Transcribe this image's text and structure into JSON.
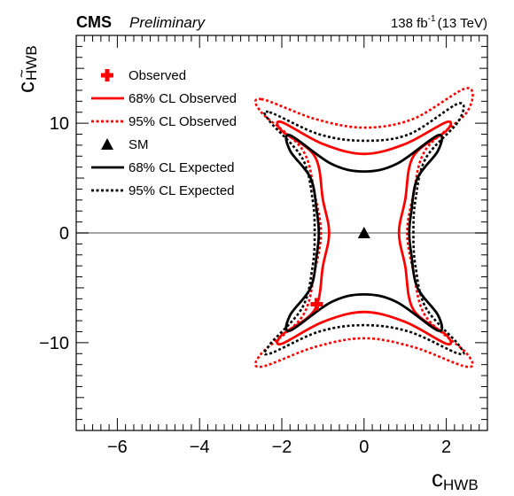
{
  "header": {
    "experiment": "CMS",
    "status": "Preliminary",
    "lumi_value": "138 fb",
    "lumi_exp": "-1",
    "energy": "(13 TeV)"
  },
  "chart_data": {
    "type": "line",
    "xlabel_main": "c",
    "xlabel_sub": "HWB",
    "ylabel_main": "c",
    "ylabel_sub": "HWB",
    "ylabel_accent": "~",
    "xlim": [
      -7,
      3
    ],
    "ylim": [
      -18,
      18
    ],
    "x_ticks": [
      -6,
      -4,
      -2,
      0,
      2
    ],
    "x_tick_labels": [
      "−6",
      "−4",
      "−2",
      "0",
      "2"
    ],
    "y_ticks": [
      -10,
      0,
      10
    ],
    "y_tick_labels": [
      "−10",
      "0",
      "10"
    ],
    "zero_line_y": 0,
    "legend_position": "top-left",
    "observed_point": {
      "name": "Observed",
      "x": -1.15,
      "y": -6.5,
      "color": "#ff0000"
    },
    "sm_point": {
      "name": "SM",
      "x": 0,
      "y": 0,
      "color": "#000000"
    },
    "series": [
      {
        "name": "68% CL Observed",
        "color": "#ff0000",
        "dash": "solid",
        "points": [
          [
            -2.0,
            10.1
          ],
          [
            -1.0,
            8.1
          ],
          [
            0,
            7.2
          ],
          [
            1.0,
            8.1
          ],
          [
            2.0,
            10.1
          ],
          [
            2.0,
            9.3
          ],
          [
            1.2,
            7.0
          ],
          [
            1.0,
            3.0
          ],
          [
            0.85,
            0
          ],
          [
            1.0,
            -3.0
          ],
          [
            1.2,
            -7.0
          ],
          [
            2.0,
            -9.3
          ],
          [
            2.0,
            -10.1
          ],
          [
            1.0,
            -8.1
          ],
          [
            0,
            -7.2
          ],
          [
            -1.0,
            -8.1
          ],
          [
            -2.0,
            -10.1
          ],
          [
            -2.0,
            -9.3
          ],
          [
            -1.2,
            -7.0
          ],
          [
            -1.0,
            -3.0
          ],
          [
            -0.85,
            0
          ],
          [
            -1.0,
            3.0
          ],
          [
            -1.2,
            7.0
          ],
          [
            -2.0,
            9.3
          ]
        ]
      },
      {
        "name": "95% CL Observed",
        "color": "#ff0000",
        "dash": "dotted",
        "points": [
          [
            -2.5,
            12.2
          ],
          [
            -1.2,
            10.4
          ],
          [
            0,
            9.6
          ],
          [
            1.2,
            10.4
          ],
          [
            2.5,
            13.2
          ],
          [
            2.5,
            11.0
          ],
          [
            1.5,
            7.6
          ],
          [
            1.2,
            3.5
          ],
          [
            1.05,
            0
          ],
          [
            1.2,
            -3.5
          ],
          [
            1.5,
            -7.6
          ],
          [
            2.5,
            -11.0
          ],
          [
            2.5,
            -12.2
          ],
          [
            1.2,
            -10.4
          ],
          [
            0,
            -9.6
          ],
          [
            -1.2,
            -10.4
          ],
          [
            -2.5,
            -12.2
          ],
          [
            -2.5,
            -11.0
          ],
          [
            -1.5,
            -7.6
          ],
          [
            -1.2,
            -3.5
          ],
          [
            -1.05,
            0
          ],
          [
            -1.2,
            3.5
          ],
          [
            -1.5,
            7.6
          ],
          [
            -2.5,
            11.0
          ]
        ]
      },
      {
        "name": "SM",
        "color": "#000000",
        "dash": "none",
        "marker": "triangle",
        "points": [
          [
            0,
            0
          ]
        ]
      },
      {
        "name": "68% CL Expected",
        "color": "#000000",
        "dash": "solid",
        "points": [
          [
            -1.8,
            8.9
          ],
          [
            -0.8,
            6.3
          ],
          [
            0,
            5.6
          ],
          [
            0.8,
            6.3
          ],
          [
            1.8,
            8.9
          ],
          [
            1.8,
            7.5
          ],
          [
            1.3,
            5.0
          ],
          [
            1.15,
            2.0
          ],
          [
            1.1,
            0
          ],
          [
            1.15,
            -2.0
          ],
          [
            1.3,
            -5.0
          ],
          [
            1.8,
            -7.5
          ],
          [
            1.8,
            -8.9
          ],
          [
            0.8,
            -6.3
          ],
          [
            0,
            -5.6
          ],
          [
            -0.8,
            -6.3
          ],
          [
            -1.8,
            -8.9
          ],
          [
            -1.8,
            -7.5
          ],
          [
            -1.3,
            -5.0
          ],
          [
            -1.15,
            -2.0
          ],
          [
            -1.1,
            0
          ],
          [
            -1.15,
            2.0
          ],
          [
            -1.3,
            5.0
          ],
          [
            -1.8,
            7.5
          ]
        ]
      },
      {
        "name": "95% CL Expected",
        "color": "#000000",
        "dash": "dotted",
        "points": [
          [
            -2.3,
            11.0
          ],
          [
            -1.1,
            9.0
          ],
          [
            0,
            8.4
          ],
          [
            1.1,
            9.0
          ],
          [
            2.3,
            11.8
          ],
          [
            2.3,
            10.2
          ],
          [
            1.5,
            6.8
          ],
          [
            1.25,
            3.0
          ],
          [
            1.2,
            0
          ],
          [
            1.25,
            -3.0
          ],
          [
            1.5,
            -6.8
          ],
          [
            2.3,
            -10.2
          ],
          [
            2.3,
            -11.0
          ],
          [
            1.1,
            -9.0
          ],
          [
            0,
            -8.4
          ],
          [
            -1.1,
            -9.0
          ],
          [
            -2.3,
            -11.0
          ],
          [
            -2.3,
            -10.2
          ],
          [
            -1.5,
            -6.8
          ],
          [
            -1.25,
            -3.0
          ],
          [
            -1.2,
            0
          ],
          [
            -1.25,
            3.0
          ],
          [
            -1.5,
            6.8
          ],
          [
            -2.3,
            10.2
          ]
        ]
      }
    ]
  },
  "legend": {
    "items": [
      {
        "label": "Observed",
        "symbol": "cross",
        "color": "#ff0000"
      },
      {
        "label": "68% CL Observed",
        "symbol": "solid",
        "color": "#ff0000"
      },
      {
        "label": "95% CL Observed",
        "symbol": "dotted",
        "color": "#ff0000"
      },
      {
        "label": "SM",
        "symbol": "triangle",
        "color": "#000000"
      },
      {
        "label": "68% CL Expected",
        "symbol": "solid",
        "color": "#000000"
      },
      {
        "label": "95% CL Expected",
        "symbol": "dotted",
        "color": "#000000"
      }
    ]
  }
}
